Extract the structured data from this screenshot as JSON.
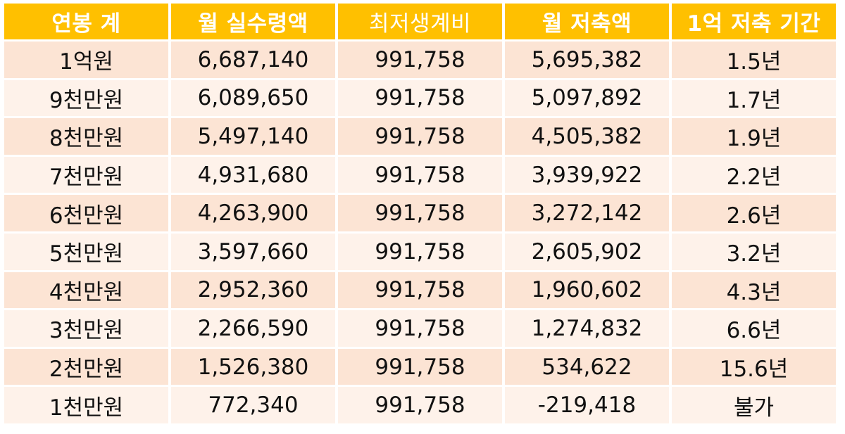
{
  "table": {
    "headers": [
      "연봉 계",
      "월 실수령액",
      "최저생계비",
      "월 저축액",
      "1억 저축 기간"
    ],
    "rows": [
      [
        "1억원",
        "6,687,140",
        "991,758",
        "5,695,382",
        "1.5년"
      ],
      [
        "9천만원",
        "6,089,650",
        "991,758",
        "5,097,892",
        "1.7년"
      ],
      [
        "8천만원",
        "5,497,140",
        "991,758",
        "4,505,382",
        "1.9년"
      ],
      [
        "7천만원",
        "4,931,680",
        "991,758",
        "3,939,922",
        "2.2년"
      ],
      [
        "6천만원",
        "4,263,900",
        "991,758",
        "3,272,142",
        "2.6년"
      ],
      [
        "5천만원",
        "3,597,660",
        "991,758",
        "2,605,902",
        "3.2년"
      ],
      [
        "4천만원",
        "2,952,360",
        "991,758",
        "1,960,602",
        "4.3년"
      ],
      [
        "3천만원",
        "2,266,590",
        "991,758",
        "1,274,832",
        "6.6년"
      ],
      [
        "2천만원",
        "1,526,380",
        "991,758",
        "534,622",
        "15.6년"
      ],
      [
        "1천만원",
        "772,340",
        "991,758",
        "-219,418",
        "불가"
      ]
    ]
  },
  "colors": {
    "header_bg": "#ffc000",
    "header_text": "#ffffff",
    "row_odd_bg": "#fce4d4",
    "row_even_bg": "#fef2ea",
    "cell_text": "#111111"
  }
}
